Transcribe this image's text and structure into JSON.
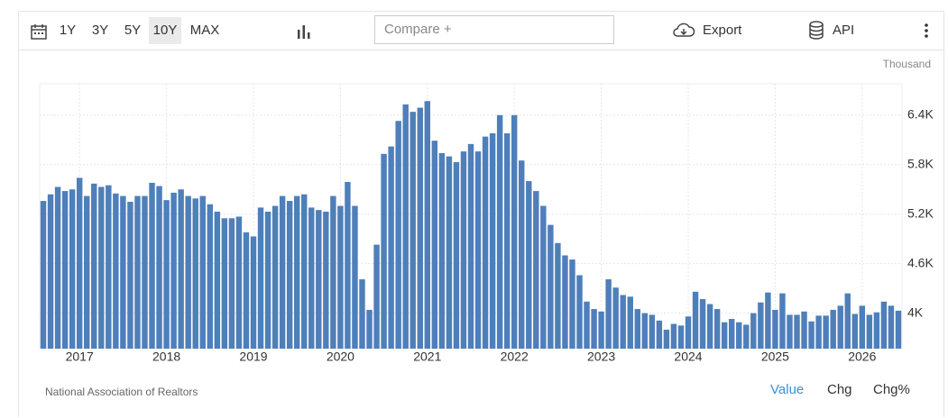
{
  "toolbar": {
    "ranges": [
      "1Y",
      "3Y",
      "5Y",
      "10Y",
      "MAX"
    ],
    "active_range": 3,
    "compare_placeholder": "Compare +",
    "export": "Export",
    "api": "API"
  },
  "chart_data": {
    "type": "bar",
    "unit_label": "Thousand",
    "color": "#4e7fba",
    "grid": true,
    "categories": [
      null,
      null,
      null,
      null,
      null,
      "2017",
      null,
      null,
      null,
      null,
      null,
      null,
      null,
      null,
      null,
      null,
      null,
      "2018",
      null,
      null,
      null,
      null,
      null,
      null,
      null,
      null,
      null,
      null,
      null,
      "2019",
      null,
      null,
      null,
      null,
      null,
      null,
      null,
      null,
      null,
      null,
      null,
      "2020",
      null,
      null,
      null,
      null,
      null,
      null,
      null,
      null,
      null,
      null,
      null,
      "2021",
      null,
      null,
      null,
      null,
      null,
      null,
      null,
      null,
      null,
      null,
      null,
      "2022",
      null,
      null,
      null,
      null,
      null,
      null,
      null,
      null,
      null,
      null,
      null,
      "2023",
      null,
      null,
      null,
      null,
      null,
      null,
      null,
      null,
      null,
      null,
      null,
      "2024",
      null,
      null,
      null,
      null,
      null,
      null,
      null,
      null,
      null,
      null,
      null,
      "2025",
      null,
      null,
      null,
      null,
      null,
      null,
      null,
      null,
      null,
      null,
      null,
      "2026",
      null,
      null,
      null,
      null,
      null
    ],
    "values": [
      5360,
      5440,
      5530,
      5480,
      5500,
      5640,
      5420,
      5570,
      5530,
      5550,
      5450,
      5420,
      5350,
      5420,
      5420,
      5580,
      5540,
      5370,
      5460,
      5500,
      5420,
      5390,
      5420,
      5320,
      5230,
      5150,
      5150,
      5170,
      4980,
      4930,
      5280,
      5230,
      5300,
      5420,
      5360,
      5420,
      5440,
      5280,
      5250,
      5230,
      5420,
      5300,
      5590,
      5300,
      4410,
      4040,
      4830,
      5930,
      6020,
      6330,
      6530,
      6440,
      6490,
      6570,
      6090,
      5940,
      5900,
      5830,
      5960,
      6050,
      5960,
      6140,
      6180,
      6400,
      6180,
      6400,
      5850,
      5600,
      5480,
      5300,
      5070,
      4850,
      4700,
      4650,
      4460,
      4140,
      4050,
      4020,
      4410,
      4310,
      4220,
      4200,
      4050,
      4000,
      3980,
      3910,
      3800,
      3870,
      3850,
      3960,
      4260,
      4170,
      4110,
      4050,
      3890,
      3930,
      3890,
      3860,
      4000,
      4130,
      4250,
      4040,
      4240,
      3980,
      3980,
      4020,
      3900,
      3970,
      3970,
      4040,
      4090,
      4240,
      3990,
      4090,
      3980,
      4010,
      4140,
      4090,
      4030
    ],
    "ylim": [
      3570,
      6780
    ],
    "yticks": [
      {
        "value": 4000,
        "label": "4K"
      },
      {
        "value": 4600,
        "label": "4.6K"
      },
      {
        "value": 5200,
        "label": "5.2K"
      },
      {
        "value": 5800,
        "label": "5.8K"
      },
      {
        "value": 6400,
        "label": "6.4K"
      }
    ]
  },
  "footer": {
    "source": "National Association of Realtors",
    "tabs": [
      "Value",
      "Chg",
      "Chg%"
    ],
    "active_tab": 0
  }
}
